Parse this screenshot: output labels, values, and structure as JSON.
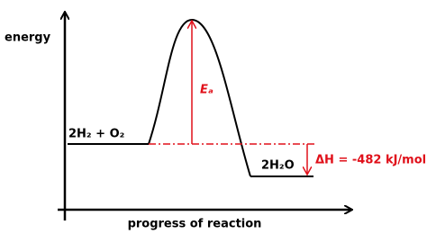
{
  "labels": {
    "y_axis": "energy",
    "x_axis": "progress of reaction",
    "reactants": "2H₂ + O₂",
    "products": "2H₂O",
    "activation_energy": "Eₐ",
    "enthalpy_change": "ΔH = -482 kJ/mol"
  }
}
